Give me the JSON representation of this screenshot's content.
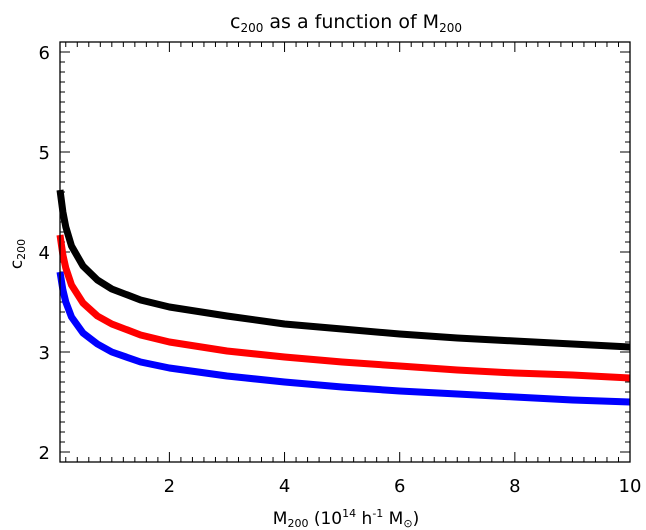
{
  "chart_data": {
    "type": "line",
    "title": {
      "pre": "c",
      "sub": "200",
      "post": " as a function of M",
      "sub2": "200"
    },
    "xlabel": {
      "pre": "M",
      "sub": "200",
      "mid": " (10",
      "sup1": "14",
      "mid2": " h",
      "sup2": "-1",
      "post": " M",
      "sub3": "⊙",
      "end": ")"
    },
    "ylabel": {
      "pre": "c",
      "sub": "200"
    },
    "xlim": [
      0.1,
      10
    ],
    "ylim": [
      1.9,
      6.1
    ],
    "xticks": [
      2,
      4,
      6,
      8,
      10
    ],
    "yticks": [
      2,
      3,
      4,
      5,
      6
    ],
    "grid": false,
    "x": [
      0.1,
      0.15,
      0.2,
      0.3,
      0.5,
      0.75,
      1,
      1.5,
      2,
      3,
      4,
      5,
      6,
      7,
      8,
      9,
      10
    ],
    "series": [
      {
        "color": "#000000",
        "values": [
          4.62,
          4.4,
          4.25,
          4.06,
          3.86,
          3.72,
          3.63,
          3.52,
          3.45,
          3.36,
          3.28,
          3.23,
          3.18,
          3.14,
          3.11,
          3.08,
          3.05
        ]
      },
      {
        "color": "#ff0000",
        "values": [
          4.17,
          3.97,
          3.84,
          3.67,
          3.49,
          3.36,
          3.28,
          3.17,
          3.1,
          3.01,
          2.95,
          2.9,
          2.86,
          2.82,
          2.79,
          2.77,
          2.74
        ]
      },
      {
        "color": "#0000ff",
        "values": [
          3.8,
          3.62,
          3.5,
          3.35,
          3.19,
          3.08,
          3.0,
          2.9,
          2.84,
          2.76,
          2.7,
          2.65,
          2.61,
          2.58,
          2.55,
          2.52,
          2.5
        ]
      }
    ]
  }
}
